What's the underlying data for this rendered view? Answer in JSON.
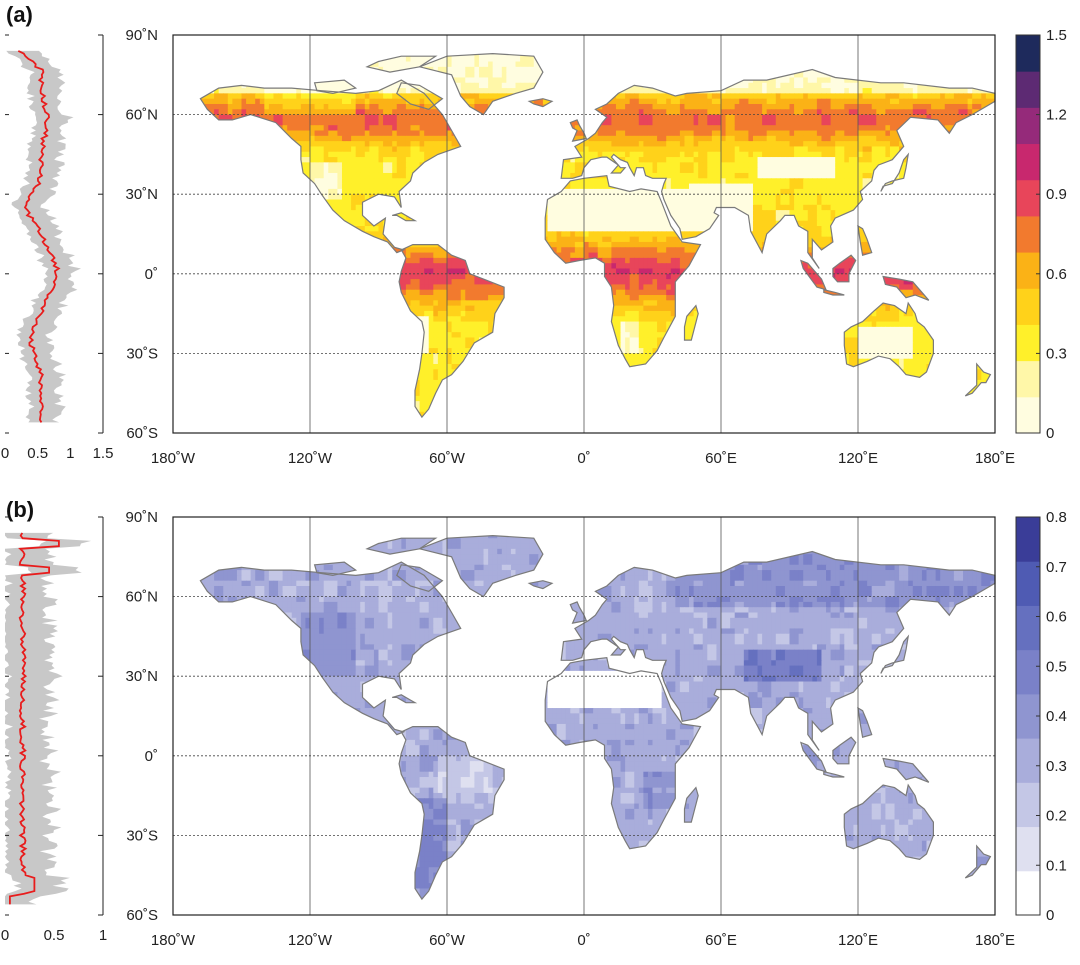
{
  "panels": [
    {
      "label": "(a)",
      "colormap": "heat",
      "colorbar": {
        "min": 0,
        "max": 1.5,
        "ticks": [
          "0",
          "0.3",
          "0.6",
          "0.9",
          "1.2",
          "1.5"
        ],
        "colors": [
          "#fffde0",
          "#fff7a8",
          "#fff02a",
          "#ffd21a",
          "#fbb216",
          "#f27a2e",
          "#e8455a",
          "#c8286e",
          "#952a7a",
          "#5d2a73",
          "#1e2a5c"
        ]
      },
      "profile": {
        "xticks": [
          "0",
          "0.5",
          "1",
          "1.5"
        ],
        "xmax": 1.5,
        "line_color": "#e81c1c",
        "band_color": "#c8c8c8"
      }
    },
    {
      "label": "(b)",
      "colormap": "blue",
      "colorbar": {
        "min": 0,
        "max": 0.8,
        "ticks": [
          "0",
          "0.1",
          "0.2",
          "0.3",
          "0.4",
          "0.5",
          "0.6",
          "0.7",
          "0.8"
        ],
        "colors": [
          "#ffffff",
          "#dfe0f0",
          "#c4c7e6",
          "#a9addb",
          "#8f95d0",
          "#7a81c8",
          "#6570bf",
          "#4f5bb3",
          "#3a3d98"
        ]
      },
      "profile": {
        "xticks": [
          "0",
          "0.5",
          "1"
        ],
        "xmax": 1.0,
        "line_color": "#e81c1c",
        "band_color": "#c8c8c8"
      }
    }
  ],
  "lat_labels": [
    "90˚N",
    "60˚N",
    "30˚N",
    "0˚",
    "30˚S",
    "60˚S"
  ],
  "lon_labels": [
    "180˚W",
    "120˚W",
    "60˚W",
    "0˚",
    "60˚E",
    "120˚E",
    "180˚E"
  ]
}
